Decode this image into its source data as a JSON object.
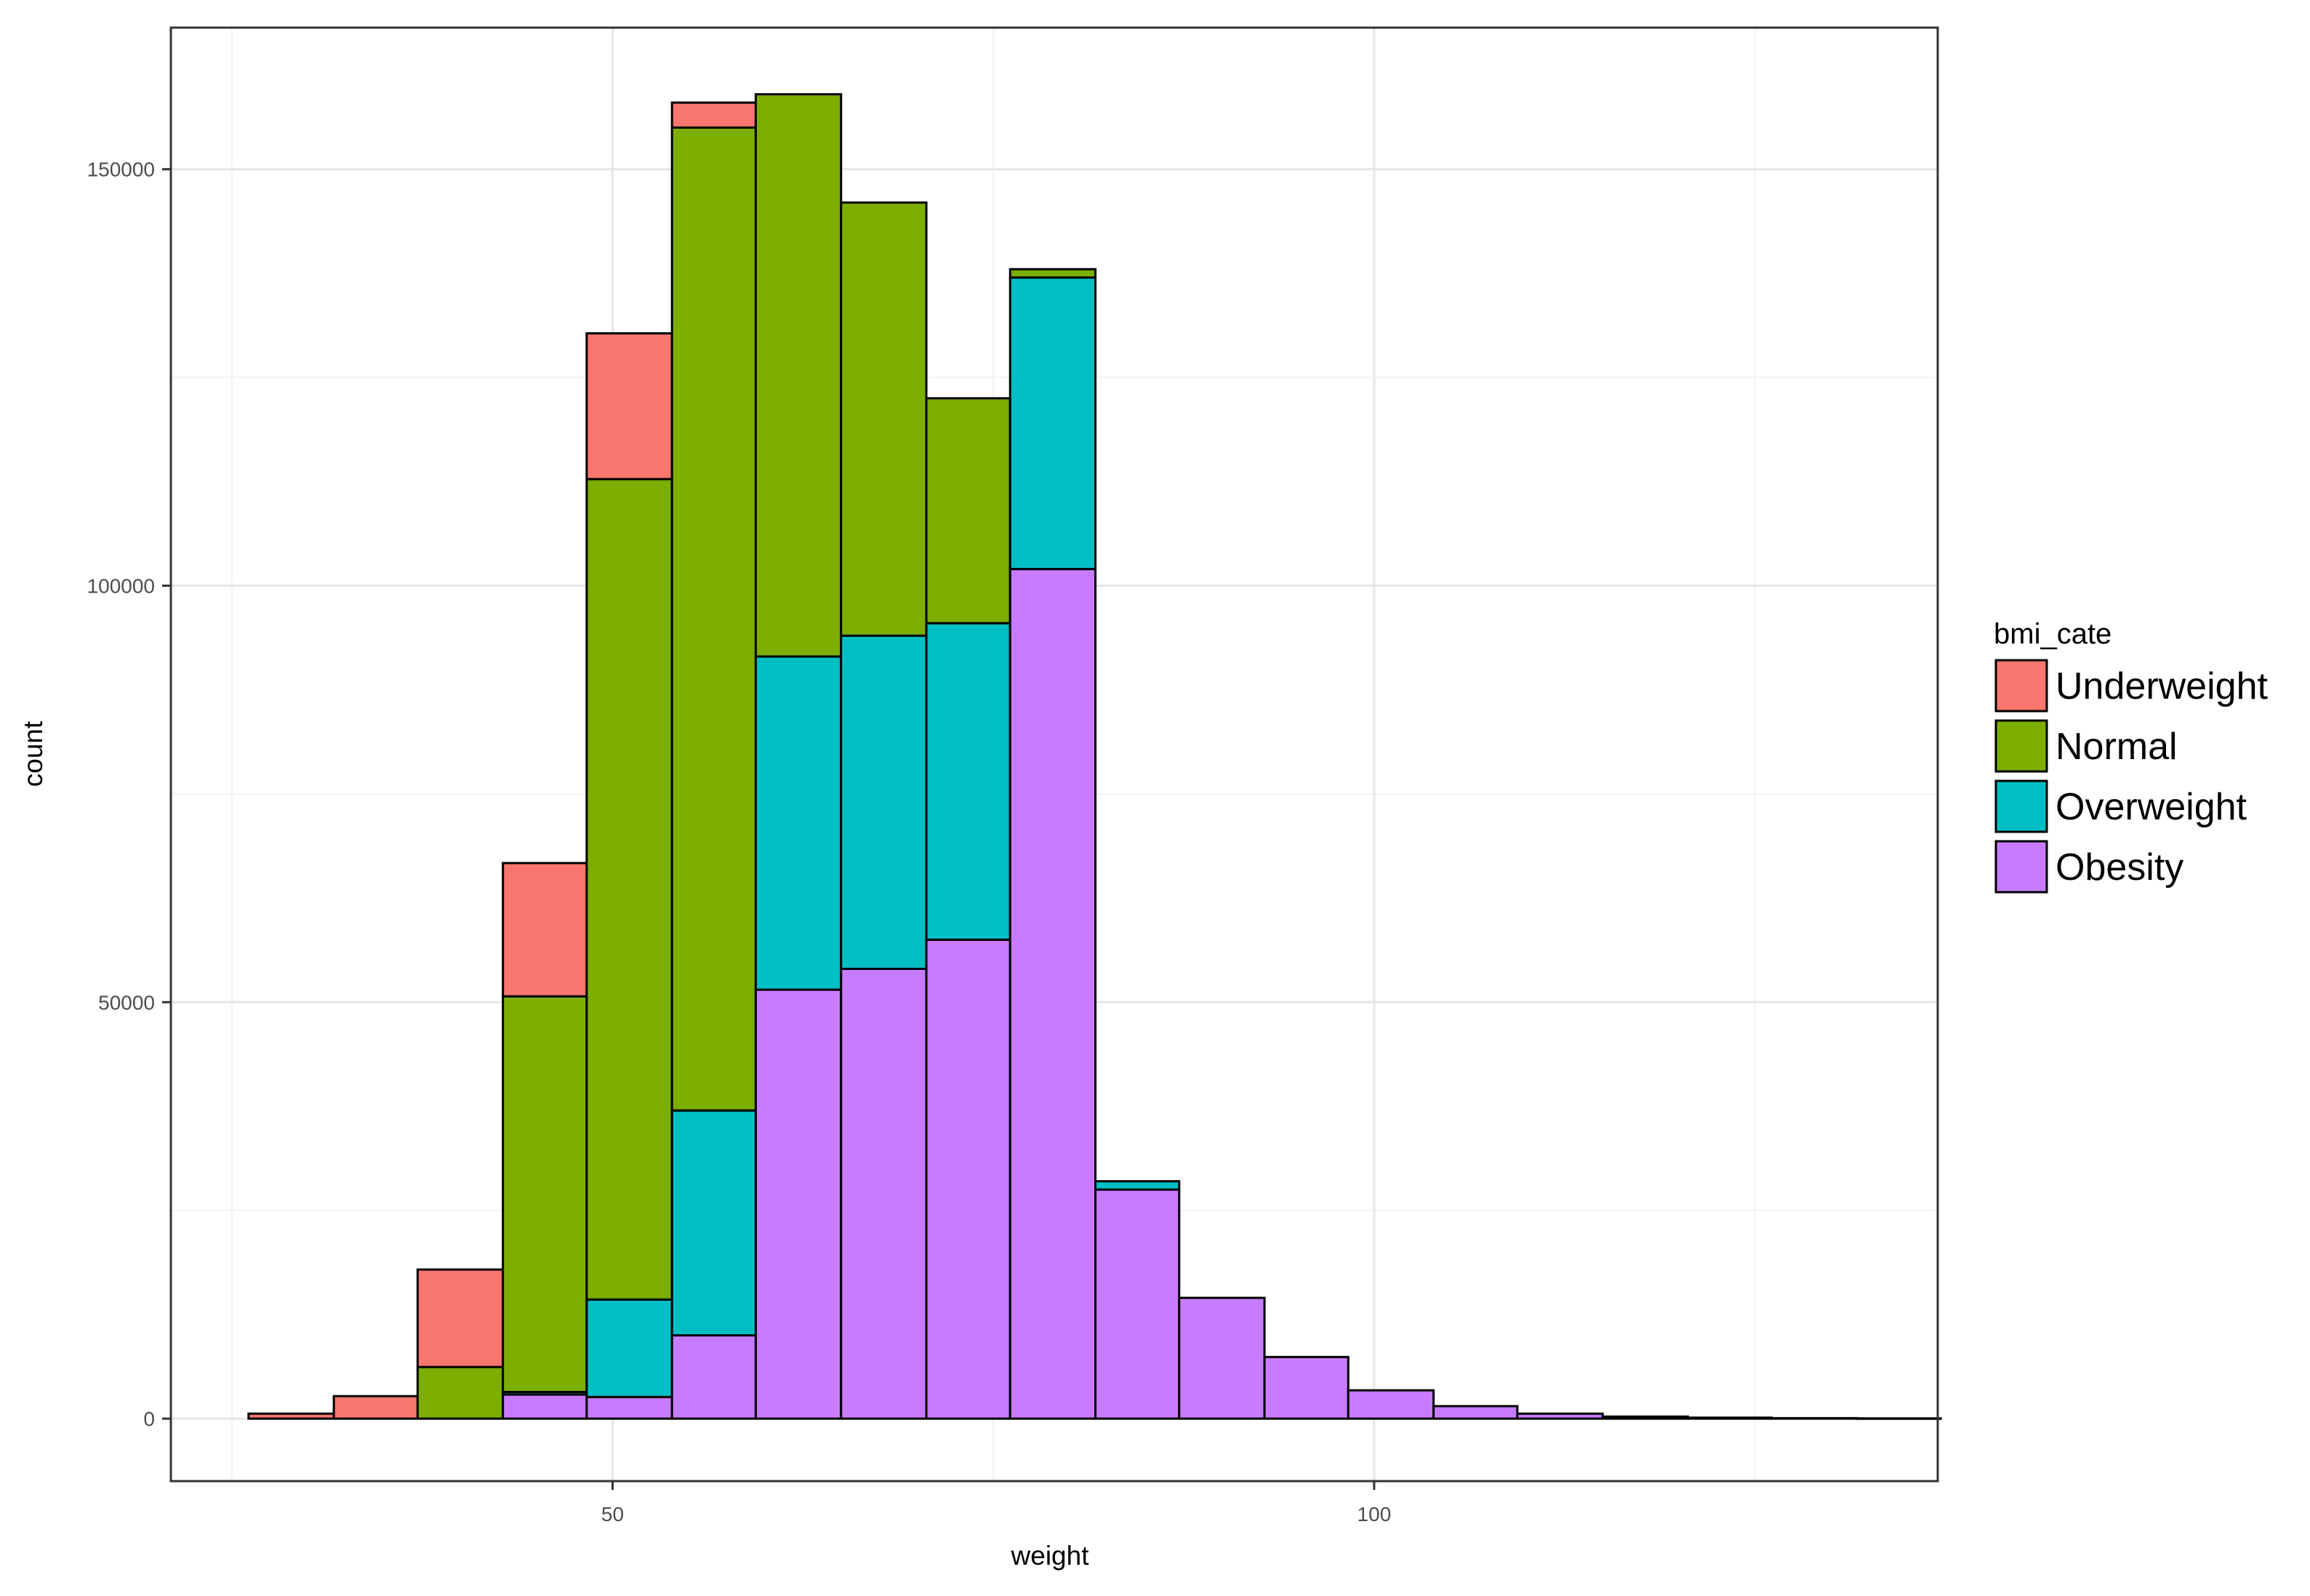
{
  "chart_data": {
    "type": "bar",
    "stacked": true,
    "title": "",
    "xlabel": "weight",
    "ylabel": "count",
    "xlim": [
      21,
      137
    ],
    "ylim": [
      -7500,
      167000
    ],
    "x_ticks": [
      {
        "value": 50,
        "label": "50"
      },
      {
        "value": 100,
        "label": "100"
      }
    ],
    "y_ticks": [
      {
        "value": 0,
        "label": "0"
      },
      {
        "value": 50000,
        "label": "50000"
      },
      {
        "value": 100000,
        "label": "100000"
      },
      {
        "value": 150000,
        "label": "150000"
      }
    ],
    "x_minor_gridlines": [
      25,
      75,
      125
    ],
    "y_minor_gridlines": [
      25000,
      75000,
      125000
    ],
    "grid": true,
    "legend_title": "bmi_cate",
    "legend_position": "right",
    "bin_width": 5.56,
    "bins": [
      {
        "x0": 26.1,
        "x1": 31.7
      },
      {
        "x0": 31.7,
        "x1": 37.2
      },
      {
        "x0": 37.2,
        "x1": 42.8
      },
      {
        "x0": 42.8,
        "x1": 48.3
      },
      {
        "x0": 48.3,
        "x1": 53.9
      },
      {
        "x0": 53.9,
        "x1": 59.4
      },
      {
        "x0": 59.4,
        "x1": 65.0
      },
      {
        "x0": 65.0,
        "x1": 70.6
      },
      {
        "x0": 70.6,
        "x1": 76.1
      },
      {
        "x0": 76.1,
        "x1": 81.7
      },
      {
        "x0": 81.7,
        "x1": 87.2
      },
      {
        "x0": 87.2,
        "x1": 92.8
      },
      {
        "x0": 92.8,
        "x1": 98.3
      },
      {
        "x0": 98.3,
        "x1": 103.9
      },
      {
        "x0": 103.9,
        "x1": 109.4
      },
      {
        "x0": 109.4,
        "x1": 115.0
      },
      {
        "x0": 115.0,
        "x1": 120.6
      },
      {
        "x0": 120.6,
        "x1": 126.1
      },
      {
        "x0": 126.1,
        "x1": 131.7
      },
      {
        "x0": 131.7,
        "x1": 137.2
      }
    ],
    "series": [
      {
        "name": "Underweight",
        "color": "#F8766D",
        "values": [
          600,
          2700,
          11700,
          16000,
          17500,
          3000,
          0,
          0,
          0,
          0,
          0,
          0,
          0,
          0,
          0,
          0,
          0,
          0,
          0,
          0
        ]
      },
      {
        "name": "Normal",
        "color": "#7CAE00",
        "values": [
          0,
          0,
          6200,
          47500,
          98500,
          118000,
          67500,
          52000,
          27000,
          1000,
          0,
          0,
          0,
          0,
          0,
          0,
          0,
          0,
          0,
          0
        ]
      },
      {
        "name": "Overweight",
        "color": "#00BFC4",
        "values": [
          0,
          0,
          0,
          300,
          11700,
          27000,
          40000,
          40000,
          38000,
          35000,
          1000,
          0,
          0,
          0,
          0,
          0,
          0,
          0,
          0,
          0
        ]
      },
      {
        "name": "Obesity",
        "color": "#C77CFF",
        "values": [
          0,
          0,
          0,
          2900,
          2600,
          10000,
          51500,
          54000,
          57500,
          102000,
          27500,
          14500,
          7400,
          3400,
          1500,
          600,
          250,
          120,
          60,
          30
        ]
      }
    ]
  }
}
